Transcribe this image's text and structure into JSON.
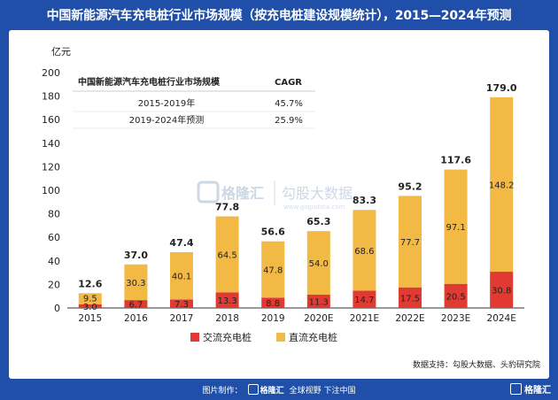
{
  "page_title": "中国新能源汽车充电桩行业市场规模（按充电桩建设规模统计），2015—2024年预测",
  "footer": {
    "made_by": "图片制作：",
    "logo_text": "格隆汇",
    "slogan": "全球视野 下注中国"
  },
  "corner_logo": "格隆汇",
  "source_note": "数据支持：勾股大数据、头豹研究院",
  "watermark": {
    "logo": "格隆汇",
    "text": "勾股大数据",
    "url": "www.gogudata.com"
  },
  "cagr_table": {
    "header_label": "中国新能源汽车充电桩行业市场规模",
    "header_value": "CAGR",
    "rows": [
      {
        "period": "2015-2019年",
        "value": "45.7%"
      },
      {
        "period": "2019-2024年预测",
        "value": "25.9%"
      }
    ]
  },
  "chart_data": {
    "type": "bar",
    "stacked": true,
    "unit_label": "亿元",
    "categories": [
      "2015",
      "2016",
      "2017",
      "2018",
      "2019",
      "2020E",
      "2021E",
      "2022E",
      "2023E",
      "2024E"
    ],
    "series": [
      {
        "name": "交流充电桩",
        "color": "#e03a33",
        "values": [
          3.0,
          6.7,
          7.3,
          13.3,
          8.8,
          11.3,
          14.7,
          17.5,
          20.5,
          30.8
        ]
      },
      {
        "name": "直流充电桩",
        "color": "#f2b944",
        "values": [
          9.5,
          30.3,
          40.1,
          64.5,
          47.8,
          54.0,
          68.6,
          77.7,
          97.1,
          148.2
        ]
      }
    ],
    "total_labels": [
      "12.6",
      "37.0",
      "47.4",
      "77.8",
      "56.6",
      "65.3",
      "83.3",
      "95.2",
      "117.6",
      "179.0"
    ],
    "series_labels": [
      [
        "3.0",
        "6.7",
        "7.3",
        "13.3",
        "8.8",
        "11.3",
        "14.7",
        "17.5",
        "20.5",
        "30.8"
      ],
      [
        "9.5",
        "30.3",
        "40.1",
        "64.5",
        "47.8",
        "54.0",
        "68.6",
        "77.7",
        "97.1",
        "148.2"
      ]
    ],
    "ylim": [
      0,
      200
    ],
    "yticks": [
      "0",
      "20",
      "40",
      "60",
      "80",
      "100",
      "120",
      "140",
      "160",
      "180",
      "200"
    ],
    "legend_position": "bottom-center",
    "grid": false
  }
}
